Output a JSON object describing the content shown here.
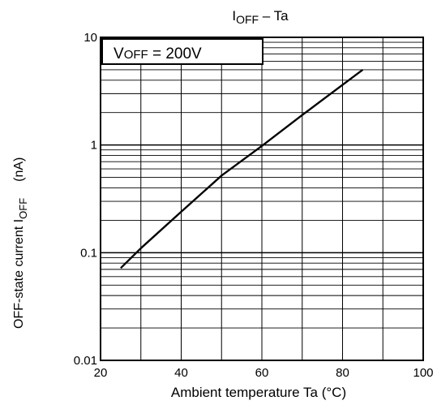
{
  "chart_data": {
    "type": "line",
    "title_main": "I",
    "title_sub": "OFF",
    "title_rest": " – Ta",
    "xlabel": "Ambient temperature    Ta (°C)",
    "ylabel_main": "OFF-state current   I",
    "ylabel_sub": "OFF",
    "ylabel_unit": "(nA)",
    "annotation_main": "V",
    "annotation_sub": "OFF",
    "annotation_rest": " = 200V",
    "x_scale": "linear",
    "y_scale": "log",
    "xlim": [
      20,
      100
    ],
    "ylim": [
      0.01,
      10
    ],
    "x_ticks": [
      "20",
      "40",
      "60",
      "80",
      "100"
    ],
    "y_ticks": [
      "0.01",
      "0.1",
      "1",
      "10"
    ],
    "grid": true,
    "line_color": "#000000",
    "series": [
      {
        "x": [
          25,
          30,
          40,
          50,
          60,
          70,
          85
        ],
        "y": [
          0.072,
          0.11,
          0.24,
          0.52,
          0.98,
          1.9,
          5.0
        ]
      }
    ]
  }
}
